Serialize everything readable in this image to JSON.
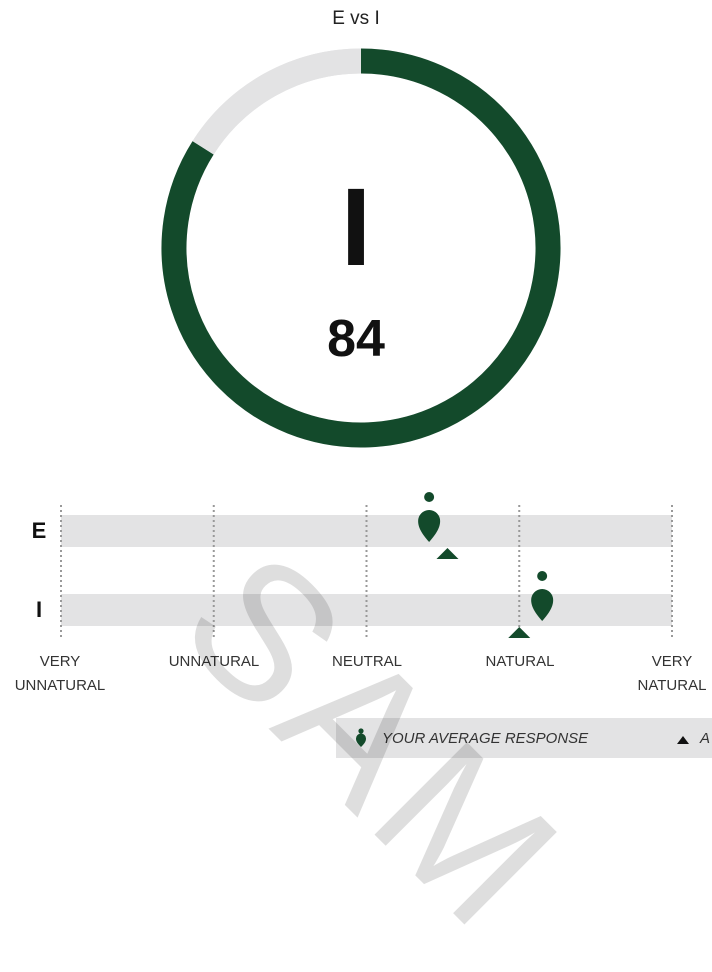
{
  "title": "E vs I",
  "watermark": "SAM",
  "colors": {
    "primary": "#134a2b",
    "track": "#e3e3e4",
    "text": "#111111"
  },
  "chart_data": [
    {
      "type": "pie",
      "center_letter": "I",
      "center_value": "84",
      "slices": [
        {
          "name": "I",
          "value": 84,
          "color": "#134a2b"
        },
        {
          "name": "E",
          "value": 16,
          "color": "#e3e3e4"
        }
      ]
    },
    {
      "type": "scatter",
      "rows": [
        "E",
        "I"
      ],
      "x_categories": [
        "VERY UNNATURAL",
        "UNNATURAL",
        "NEUTRAL",
        "NATURAL",
        "VERY NATURAL"
      ],
      "xlim": [
        1,
        5
      ],
      "series": [
        {
          "name": "YOUR AVERAGE RESPONSE",
          "marker": "pin-icon",
          "values": [
            3.41,
            4.15
          ]
        },
        {
          "name": "A",
          "marker": "triangle-icon",
          "values": [
            3.53,
            4.0
          ]
        }
      ]
    }
  ],
  "ticks": [
    {
      "line1": "VERY",
      "line2": "UNNATURAL"
    },
    {
      "line1": "",
      "line2": "UNNATURAL"
    },
    {
      "line1": "",
      "line2": "NEUTRAL"
    },
    {
      "line1": "",
      "line2": "NATURAL"
    },
    {
      "line1": "VERY",
      "line2": "NATURAL"
    }
  ],
  "legend": {
    "response_label": "YOUR AVERAGE RESPONSE",
    "average_label": "A"
  }
}
